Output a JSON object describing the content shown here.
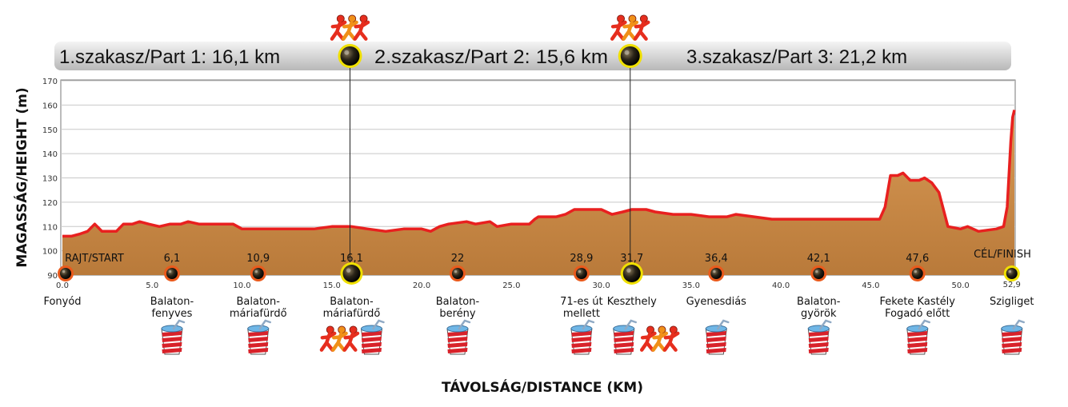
{
  "colors": {
    "profile_line": "#e8201f",
    "profile_fill": "#c98a47",
    "marker_ring_orange": "#ea5a1c",
    "marker_ring_yellow": "#f0e000",
    "header_bar": "#d9d9d9"
  },
  "segments": [
    {
      "label": "1.szakasz/Part 1: 16,1 km"
    },
    {
      "label": "2.szakasz/Part 2: 15,6 km"
    },
    {
      "label": "3.szakasz/Part 3: 21,2 km"
    }
  ],
  "chart_data": {
    "type": "area",
    "xlabel": "TÁVOLSÁG/DISTANCE (KM)",
    "ylabel": "MAGASSÁG/HEIGHT (m)",
    "xlim": [
      0,
      53
    ],
    "ylim": [
      90,
      170
    ],
    "x_ticks": [
      "0.0",
      "5.0",
      "10.0",
      "15.0",
      "20.0",
      "25.0",
      "30.0",
      "35.0",
      "40.0",
      "45.0",
      "50.0"
    ],
    "y_ticks": [
      "90",
      "100",
      "110",
      "120",
      "130",
      "140",
      "150",
      "160",
      "170"
    ],
    "grid": true,
    "profile": [
      [
        0.0,
        106
      ],
      [
        0.5,
        106
      ],
      [
        1.0,
        107
      ],
      [
        1.4,
        108
      ],
      [
        1.8,
        111
      ],
      [
        2.2,
        108
      ],
      [
        3.0,
        108
      ],
      [
        3.4,
        111
      ],
      [
        3.9,
        111
      ],
      [
        4.3,
        112
      ],
      [
        4.8,
        111
      ],
      [
        5.4,
        110
      ],
      [
        6.0,
        111
      ],
      [
        6.6,
        111
      ],
      [
        7.0,
        112
      ],
      [
        7.6,
        111
      ],
      [
        8.4,
        111
      ],
      [
        9.5,
        111
      ],
      [
        10.0,
        109
      ],
      [
        11.0,
        109
      ],
      [
        12.0,
        109
      ],
      [
        13.0,
        109
      ],
      [
        14.0,
        109
      ],
      [
        15.0,
        110
      ],
      [
        15.8,
        110
      ],
      [
        16.1,
        110
      ],
      [
        17.0,
        109
      ],
      [
        18.0,
        108
      ],
      [
        19.0,
        109
      ],
      [
        20.0,
        109
      ],
      [
        20.5,
        108
      ],
      [
        21.0,
        110
      ],
      [
        21.5,
        111
      ],
      [
        22.5,
        112
      ],
      [
        23.0,
        111
      ],
      [
        23.8,
        112
      ],
      [
        24.2,
        110
      ],
      [
        25.0,
        111
      ],
      [
        26.0,
        111
      ],
      [
        26.3,
        113
      ],
      [
        26.5,
        114
      ],
      [
        27.5,
        114
      ],
      [
        28.0,
        115
      ],
      [
        28.5,
        117
      ],
      [
        29.0,
        117
      ],
      [
        30.0,
        117
      ],
      [
        30.6,
        115
      ],
      [
        31.2,
        116
      ],
      [
        31.7,
        117
      ],
      [
        32.5,
        117
      ],
      [
        33.0,
        116
      ],
      [
        34.0,
        115
      ],
      [
        35.0,
        115
      ],
      [
        36.0,
        114
      ],
      [
        37.0,
        114
      ],
      [
        37.5,
        115
      ],
      [
        38.5,
        114
      ],
      [
        39.5,
        113
      ],
      [
        41.0,
        113
      ],
      [
        42.0,
        113
      ],
      [
        43.0,
        113
      ],
      [
        44.5,
        113
      ],
      [
        45.5,
        113
      ],
      [
        45.8,
        118
      ],
      [
        46.1,
        131
      ],
      [
        46.5,
        131
      ],
      [
        46.8,
        132
      ],
      [
        47.2,
        129
      ],
      [
        47.7,
        129
      ],
      [
        48.0,
        130
      ],
      [
        48.4,
        128
      ],
      [
        48.8,
        124
      ],
      [
        49.3,
        110
      ],
      [
        50.0,
        109
      ],
      [
        50.4,
        110
      ],
      [
        51.0,
        108
      ],
      [
        52.0,
        109
      ],
      [
        52.4,
        110
      ],
      [
        52.6,
        118
      ],
      [
        52.8,
        145
      ],
      [
        52.9,
        155
      ],
      [
        53.0,
        158
      ]
    ],
    "segment_dividers_km": [
      16.1,
      31.7
    ],
    "checkpoints": [
      {
        "km": 0.0,
        "value": "RAJT/START",
        "name": [
          "Fonyód"
        ],
        "ring": "orange",
        "cup": false,
        "runners": false
      },
      {
        "km": 6.1,
        "value": "6,1",
        "name": [
          "Balaton-",
          "fenyves"
        ],
        "ring": "orange",
        "cup": true,
        "runners": false
      },
      {
        "km": 10.9,
        "value": "10,9",
        "name": [
          "Balaton-",
          "máriafürdő"
        ],
        "ring": "orange",
        "cup": true,
        "runners": false
      },
      {
        "km": 16.1,
        "value": "16,1",
        "name": [
          "Balaton-",
          "máriafürdő"
        ],
        "ring": "yellow",
        "cup": true,
        "runners": true
      },
      {
        "km": 22.0,
        "value": "22",
        "name": [
          "Balaton-",
          "berény"
        ],
        "ring": "orange",
        "cup": true,
        "runners": false
      },
      {
        "km": 28.9,
        "value": "28,9",
        "name": [
          "71-es út",
          "mellett"
        ],
        "ring": "orange",
        "cup": true,
        "runners": false
      },
      {
        "km": 31.7,
        "value": "31,7",
        "name": [
          "Keszthely"
        ],
        "ring": "yellow",
        "cup": true,
        "runners": true
      },
      {
        "km": 36.4,
        "value": "36,4",
        "name": [
          "Gyenesdiás"
        ],
        "ring": "orange",
        "cup": true,
        "runners": false
      },
      {
        "km": 42.1,
        "value": "42,1",
        "name": [
          "Balaton-",
          "györök"
        ],
        "ring": "orange",
        "cup": true,
        "runners": false
      },
      {
        "km": 47.6,
        "value": "47,6",
        "name": [
          "Fekete Kastély",
          "Fogadó előtt"
        ],
        "ring": "orange",
        "cup": true,
        "runners": false
      },
      {
        "km": 52.9,
        "value": "CÉL/FINISH",
        "sub": "52,9",
        "name": [
          "Szigliget"
        ],
        "ring": "yellow",
        "cup": true,
        "runners": false
      }
    ]
  }
}
